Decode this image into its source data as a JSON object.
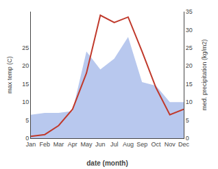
{
  "chart_data": {
    "type": "line",
    "categories": [
      "Jan",
      "Feb",
      "Mar",
      "Apr",
      "May",
      "Jun",
      "Jul",
      "Aug",
      "Sep",
      "Oct",
      "Nov",
      "Dec"
    ],
    "series": [
      {
        "type": "area",
        "color": "#b8c8ee",
        "values": [
          6.5,
          7.0,
          7.0,
          7.5,
          24.0,
          19.0,
          22.0,
          28.0,
          15.5,
          14.5,
          10.0,
          10.0
        ]
      },
      {
        "type": "line",
        "axis": "y2",
        "color": "#c0392b",
        "values": [
          0.5,
          1.0,
          3.5,
          8.0,
          18.0,
          34.0,
          32.0,
          33.5,
          24.0,
          14.0,
          6.5,
          8.0
        ]
      }
    ],
    "xlabel": "date (month)",
    "ylabel": "max temp (C)",
    "y2label": "med. precipitation (kg/m2)",
    "ylim": [
      0,
      35
    ],
    "yticks": [
      0,
      5,
      10,
      15,
      20,
      25
    ],
    "y2lim": [
      0,
      35
    ],
    "y2ticks": [
      0,
      5,
      10,
      15,
      20,
      25,
      30,
      35
    ],
    "grid": false
  }
}
